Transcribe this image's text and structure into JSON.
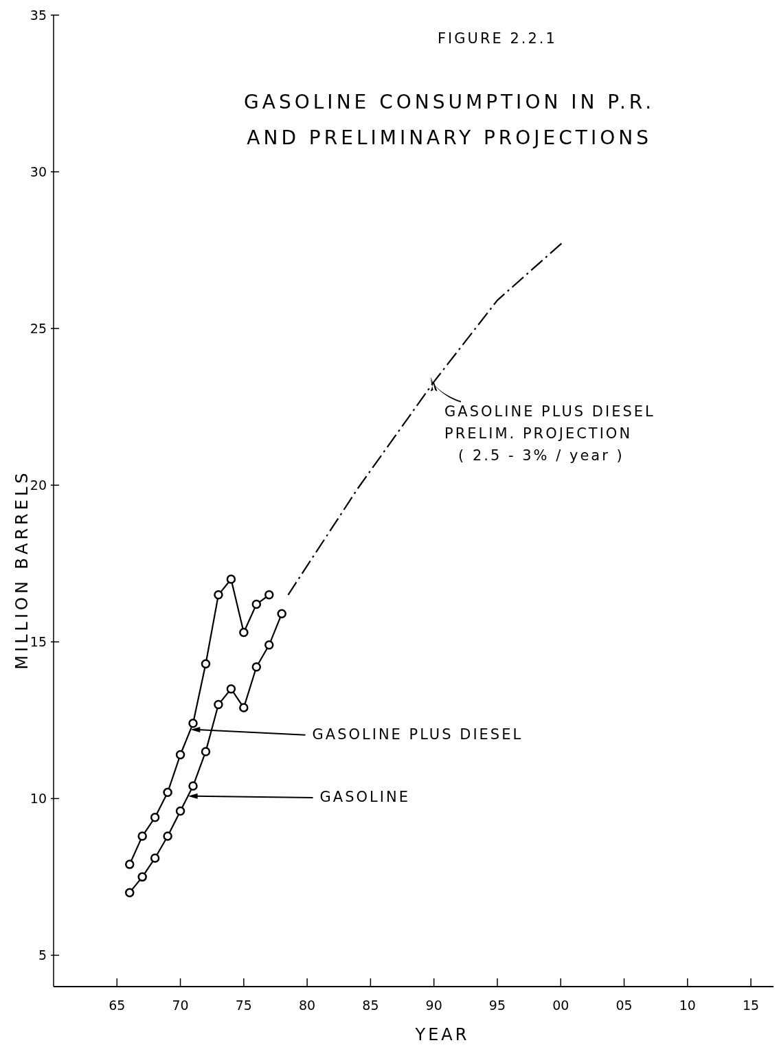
{
  "chart_data": {
    "type": "line",
    "title": "GASOLINE CONSUMPTION IN P.R. AND PRELIMINARY PROJECTIONS",
    "xlabel": "YEAR",
    "ylabel": "MILLION BARRELS",
    "annotations": [
      "FIGURE 2.2.1"
    ],
    "xlim": [
      1960,
      2017
    ],
    "ylim": [
      4,
      35
    ],
    "xticks": [
      {
        "value": 1965,
        "label": "65"
      },
      {
        "value": 1970,
        "label": "70"
      },
      {
        "value": 1975,
        "label": "75"
      },
      {
        "value": 1980,
        "label": "80"
      },
      {
        "value": 1985,
        "label": "85"
      },
      {
        "value": 1990,
        "label": "90"
      },
      {
        "value": 1995,
        "label": "95"
      },
      {
        "value": 2000,
        "label": "00"
      },
      {
        "value": 2005,
        "label": "05"
      },
      {
        "value": 2010,
        "label": "10"
      },
      {
        "value": 2015,
        "label": "15"
      }
    ],
    "yticks": [
      5,
      10,
      15,
      20,
      25,
      30,
      35
    ],
    "grid": false,
    "series": [
      {
        "name": "GASOLINE PLUS DIESEL",
        "color": "#000000",
        "marker": "circle",
        "line_style": "solid",
        "x": [
          1966,
          1967,
          1968,
          1969,
          1970,
          1971,
          1972,
          1973,
          1974,
          1975,
          1976,
          1977
        ],
        "values": [
          7.9,
          8.8,
          9.4,
          10.2,
          11.4,
          12.4,
          14.3,
          16.5,
          17.0,
          15.3,
          16.2,
          16.5
        ]
      },
      {
        "name": "GASOLINE",
        "color": "#000000",
        "marker": "circle",
        "line_style": "solid",
        "x": [
          1966,
          1967,
          1968,
          1969,
          1970,
          1971,
          1972,
          1973,
          1974,
          1975,
          1976,
          1977,
          1978
        ],
        "values": [
          7.0,
          7.5,
          8.1,
          8.8,
          9.6,
          10.4,
          11.5,
          13.0,
          13.5,
          12.9,
          14.2,
          14.9,
          15.9
        ]
      },
      {
        "name": "GASOLINE PLUS DIESEL PRELIM. PROJECTION ( 2.5 - 3% / year )",
        "color": "#000000",
        "marker": "none",
        "line_style": "dashed",
        "x": [
          1978.5,
          1984,
          1990,
          1995,
          2000.3
        ],
        "values": [
          16.5,
          19.9,
          23.3,
          25.9,
          27.8
        ]
      }
    ]
  }
}
